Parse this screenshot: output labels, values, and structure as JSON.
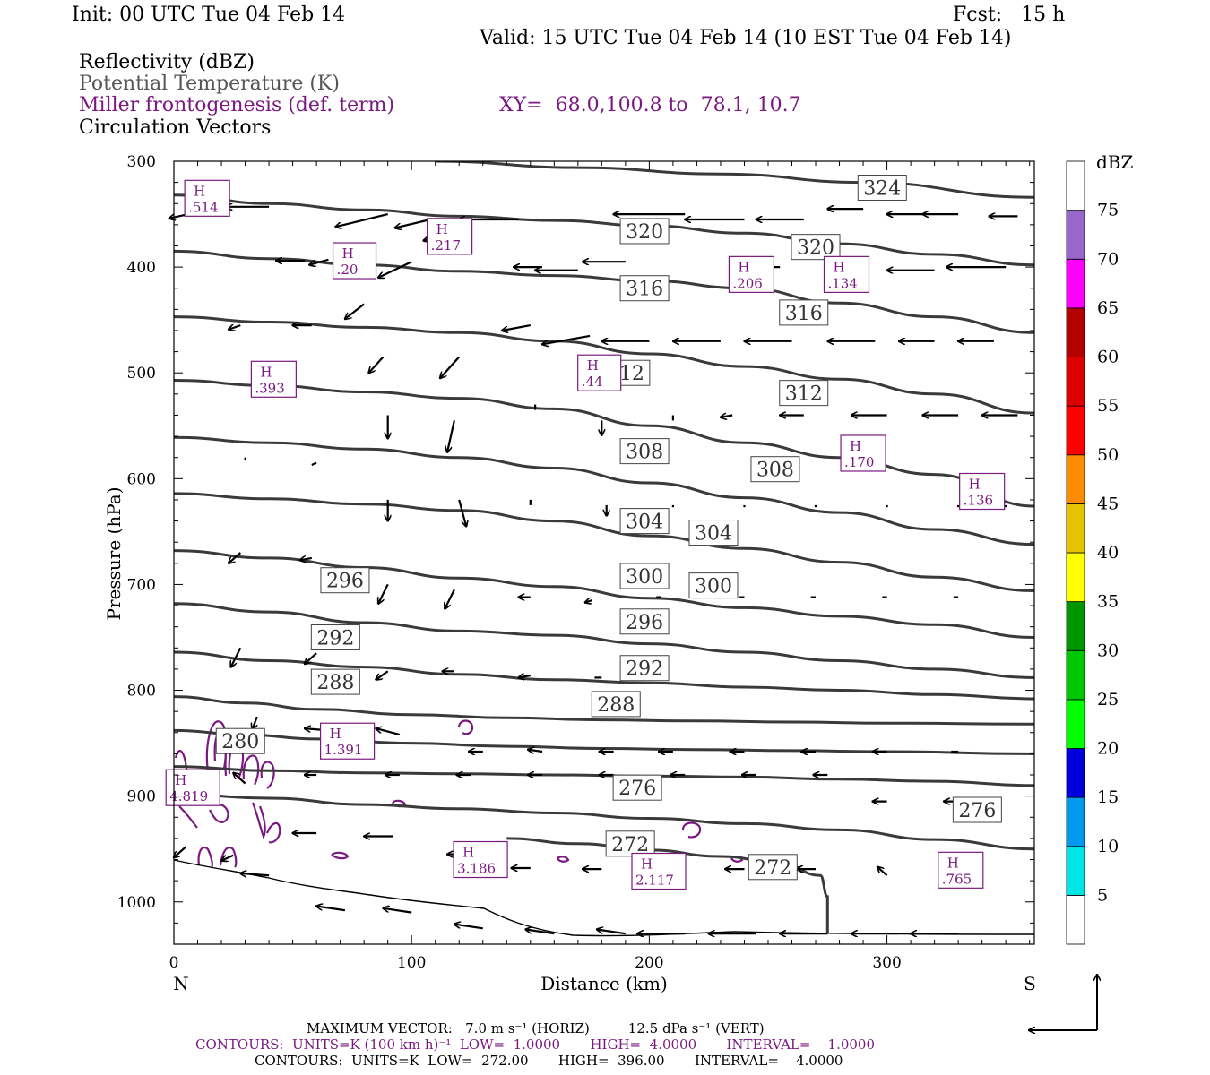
{
  "header": {
    "init": "Init: 00 UTC Tue 04 Feb 14",
    "fcst": "Fcst:   15 h",
    "valid": "Valid: 15 UTC Tue 04 Feb 14 (10 EST Tue 04 Feb 14)"
  },
  "legend_lines": {
    "reflectivity": "Reflectivity (dBZ)",
    "theta": "Potential Temperature (K)",
    "miller": "Miller frontogenesis (def. term)",
    "xy": "XY=  68.0,100.8 to  78.1, 10.7",
    "vectors": "Circulation Vectors"
  },
  "colors": {
    "theta_line": "#3a3a3a",
    "frontogenesis": "#7a1a80",
    "vector": "#000000"
  },
  "chart_data": {
    "type": "line",
    "xlabel": "Distance (km)",
    "ylabel": "Pressure (hPa)",
    "xlim": [
      0,
      362
    ],
    "ylim": [
      1040,
      300
    ],
    "x_ticks": [
      "0",
      "100",
      "200",
      "300"
    ],
    "y_ticks": [
      "300",
      "400",
      "500",
      "600",
      "700",
      "800",
      "900",
      "1000"
    ],
    "x_end_labels": {
      "left": "N",
      "right": "S"
    },
    "series": [
      {
        "theta": 324,
        "x": [
          110,
          170,
          230,
          290,
          362
        ],
        "p": [
          300,
          306,
          312,
          320,
          334
        ]
      },
      {
        "theta": 320,
        "x": [
          0,
          40,
          80,
          120,
          160,
          200,
          240,
          280,
          320,
          362
        ],
        "p": [
          332,
          340,
          346,
          352,
          356,
          361,
          368,
          378,
          388,
          398
        ]
      },
      {
        "theta": 316,
        "x": [
          0,
          40,
          80,
          120,
          160,
          200,
          240,
          280,
          320,
          362
        ],
        "p": [
          385,
          392,
          398,
          404,
          408,
          413,
          420,
          434,
          447,
          462
        ]
      },
      {
        "theta": 312,
        "x": [
          0,
          40,
          80,
          120,
          160,
          200,
          240,
          280,
          320,
          362
        ],
        "p": [
          447,
          452,
          457,
          462,
          470,
          482,
          494,
          506,
          520,
          538
        ]
      },
      {
        "theta": 308,
        "x": [
          0,
          40,
          80,
          120,
          160,
          200,
          240,
          280,
          320,
          362
        ],
        "p": [
          507,
          512,
          518,
          524,
          534,
          550,
          566,
          580,
          596,
          626
        ]
      },
      {
        "theta": 304,
        "x": [
          0,
          40,
          80,
          120,
          160,
          200,
          240,
          280,
          320,
          362
        ],
        "p": [
          561,
          566,
          572,
          580,
          590,
          604,
          618,
          632,
          648,
          662
        ]
      },
      {
        "theta": 300,
        "x": [
          0,
          40,
          80,
          120,
          160,
          200,
          240,
          280,
          320,
          362
        ],
        "p": [
          614,
          619,
          624,
          630,
          640,
          654,
          666,
          679,
          693,
          706
        ]
      },
      {
        "theta": 296,
        "x": [
          0,
          40,
          80,
          120,
          160,
          200,
          240,
          280,
          320,
          362
        ],
        "p": [
          668,
          675,
          684,
          694,
          702,
          713,
          722,
          730,
          738,
          750
        ]
      },
      {
        "theta": 292,
        "x": [
          0,
          40,
          80,
          120,
          160,
          200,
          240,
          280,
          320,
          362
        ],
        "p": [
          718,
          726,
          736,
          744,
          748,
          756,
          764,
          772,
          780,
          788
        ]
      },
      {
        "theta": 288,
        "x": [
          0,
          40,
          80,
          120,
          160,
          200,
          240,
          280,
          320,
          362
        ],
        "p": [
          764,
          772,
          778,
          785,
          790,
          793,
          797,
          800,
          804,
          808
        ]
      },
      {
        "theta": 284,
        "x": [
          0,
          30,
          60,
          100,
          140,
          180,
          220,
          260,
          300,
          362
        ],
        "p": [
          806,
          812,
          818,
          823,
          826,
          828,
          829,
          830,
          831,
          832
        ]
      },
      {
        "theta": 280,
        "x": [
          0,
          30,
          60,
          100,
          140,
          180,
          220,
          260,
          300,
          362
        ],
        "p": [
          838,
          842,
          846,
          850,
          853,
          855,
          856,
          857,
          858,
          860
        ]
      },
      {
        "theta": 276,
        "x": [
          0,
          40,
          80,
          120,
          160,
          200,
          240,
          280,
          320,
          362
        ],
        "p": [
          872,
          876,
          878,
          879,
          880,
          881,
          882,
          884,
          886,
          890
        ]
      },
      {
        "theta": 272,
        "x": [
          0,
          40,
          80,
          120,
          160,
          200,
          240,
          280,
          320,
          362
        ],
        "p": [
          898,
          902,
          908,
          912,
          916,
          921,
          926,
          932,
          941,
          950
        ]
      },
      {
        "theta": 272,
        "x": [
          140,
          170,
          200,
          230,
          255,
          272,
          275,
          275
        ],
        "p": [
          940,
          945,
          951,
          957,
          963,
          975,
          995,
          1030
        ]
      }
    ],
    "theta_labels": [
      {
        "text": "324",
        "x": 298,
        "p": 325
      },
      {
        "text": "320",
        "x": 198,
        "p": 366
      },
      {
        "text": "320",
        "x": 270,
        "p": 381
      },
      {
        "text": "316",
        "x": 198,
        "p": 420
      },
      {
        "text": "316",
        "x": 265,
        "p": 443
      },
      {
        "text": "312",
        "x": 190,
        "p": 500
      },
      {
        "text": "312",
        "x": 265,
        "p": 519
      },
      {
        "text": "308",
        "x": 198,
        "p": 574
      },
      {
        "text": "308",
        "x": 253,
        "p": 591
      },
      {
        "text": "304",
        "x": 198,
        "p": 640
      },
      {
        "text": "304",
        "x": 227,
        "p": 651
      },
      {
        "text": "300",
        "x": 198,
        "p": 692
      },
      {
        "text": "300",
        "x": 227,
        "p": 701
      },
      {
        "text": "296",
        "x": 72,
        "p": 696
      },
      {
        "text": "296",
        "x": 198,
        "p": 735
      },
      {
        "text": "292",
        "x": 68,
        "p": 750
      },
      {
        "text": "292",
        "x": 198,
        "p": 779
      },
      {
        "text": "288",
        "x": 68,
        "p": 792
      },
      {
        "text": "288",
        "x": 186,
        "p": 813
      },
      {
        "text": "280",
        "x": 28,
        "p": 848
      },
      {
        "text": "276",
        "x": 195,
        "p": 892
      },
      {
        "text": "276",
        "x": 338,
        "p": 913
      },
      {
        "text": "272",
        "x": 192,
        "p": 945
      },
      {
        "text": "272",
        "x": 252,
        "p": 967
      }
    ],
    "frontogenesis_highs": [
      {
        "label": "H",
        "value": ".514",
        "x": 14,
        "p": 335
      },
      {
        "label": "H",
        "value": ".217",
        "x": 116,
        "p": 371
      },
      {
        "label": "H",
        "value": ".20",
        "x": 76,
        "p": 394
      },
      {
        "label": "H",
        "value": ".206",
        "x": 243,
        "p": 407
      },
      {
        "label": "H",
        "value": ".134",
        "x": 283,
        "p": 407
      },
      {
        "label": "H",
        "value": ".393",
        "x": 42,
        "p": 506
      },
      {
        "label": "H",
        "value": ".44",
        "x": 179,
        "p": 500
      },
      {
        "label": "H",
        "value": ".170",
        "x": 290,
        "p": 576
      },
      {
        "label": "H",
        "value": ".136",
        "x": 340,
        "p": 612
      },
      {
        "label": "H",
        "value": "1.391",
        "x": 73,
        "p": 848
      },
      {
        "label": "H",
        "value": "4.819",
        "x": 8,
        "p": 892
      },
      {
        "label": "H",
        "value": "3.186",
        "x": 129,
        "p": 960
      },
      {
        "label": "H",
        "value": "2.117",
        "x": 204,
        "p": 971
      },
      {
        "label": "H",
        "value": ".765",
        "x": 331,
        "p": 970
      }
    ],
    "vectors": [
      [
        8,
        349,
        -10,
        5
      ],
      [
        40,
        343,
        -18,
        0
      ],
      [
        65,
        393,
        -8,
        5
      ],
      [
        55,
        394,
        -12,
        0
      ],
      [
        90,
        350,
        -22,
        12
      ],
      [
        108,
        355,
        -15,
        8
      ],
      [
        100,
        395,
        -14,
        15
      ],
      [
        80,
        435,
        -8,
        14
      ],
      [
        125,
        363,
        -20,
        12
      ],
      [
        145,
        355,
        -25,
        0
      ],
      [
        155,
        400,
        -12,
        0
      ],
      [
        170,
        403,
        -18,
        0
      ],
      [
        190,
        395,
        -18,
        0
      ],
      [
        215,
        350,
        -30,
        0
      ],
      [
        240,
        355,
        -25,
        0
      ],
      [
        265,
        355,
        -20,
        0
      ],
      [
        290,
        345,
        -15,
        0
      ],
      [
        315,
        350,
        -15,
        0
      ],
      [
        330,
        350,
        -15,
        0
      ],
      [
        355,
        352,
        -12,
        0
      ],
      [
        255,
        400,
        -15,
        0
      ],
      [
        290,
        400,
        -15,
        0
      ],
      [
        320,
        403,
        -20,
        0
      ],
      [
        350,
        400,
        -25,
        0
      ],
      [
        28,
        455,
        -5,
        4
      ],
      [
        58,
        455,
        -8,
        0
      ],
      [
        88,
        485,
        -6,
        15
      ],
      [
        120,
        485,
        -8,
        20
      ],
      [
        150,
        455,
        -12,
        5
      ],
      [
        175,
        465,
        -20,
        8
      ],
      [
        200,
        470,
        -20,
        0
      ],
      [
        230,
        470,
        -20,
        0
      ],
      [
        260,
        470,
        -20,
        0
      ],
      [
        295,
        470,
        -20,
        0
      ],
      [
        320,
        470,
        -15,
        0
      ],
      [
        345,
        470,
        -15,
        0
      ],
      [
        90,
        540,
        0,
        22
      ],
      [
        118,
        545,
        -3,
        30
      ],
      [
        152,
        530,
        0,
        5
      ],
      [
        180,
        545,
        0,
        14
      ],
      [
        210,
        540,
        0,
        5
      ],
      [
        235,
        540,
        -5,
        2
      ],
      [
        265,
        540,
        -10,
        0
      ],
      [
        300,
        540,
        -15,
        0
      ],
      [
        330,
        540,
        -15,
        0
      ],
      [
        355,
        540,
        -15,
        0
      ],
      [
        30,
        580,
        0,
        2
      ],
      [
        60,
        585,
        -2,
        2
      ],
      [
        90,
        620,
        0,
        20
      ],
      [
        120,
        620,
        3,
        25
      ],
      [
        150,
        620,
        0,
        5
      ],
      [
        182,
        625,
        0,
        10
      ],
      [
        210,
        625,
        0,
        2
      ],
      [
        240,
        625,
        0,
        2
      ],
      [
        270,
        625,
        0,
        2
      ],
      [
        300,
        625,
        0,
        2
      ],
      [
        330,
        625,
        0,
        2
      ],
      [
        350,
        625,
        0,
        2
      ],
      [
        28,
        670,
        -5,
        10
      ],
      [
        58,
        675,
        -5,
        2
      ],
      [
        90,
        700,
        -4,
        18
      ],
      [
        118,
        705,
        -4,
        18
      ],
      [
        150,
        712,
        -5,
        0
      ],
      [
        176,
        715,
        -3,
        2
      ],
      [
        205,
        712,
        -2,
        0
      ],
      [
        240,
        712,
        -2,
        0
      ],
      [
        270,
        712,
        -2,
        0
      ],
      [
        300,
        712,
        -2,
        0
      ],
      [
        330,
        712,
        -2,
        0
      ],
      [
        28,
        760,
        -4,
        18
      ],
      [
        60,
        765,
        -5,
        10
      ],
      [
        90,
        782,
        -5,
        8
      ],
      [
        118,
        782,
        -5,
        0
      ],
      [
        150,
        786,
        -5,
        2
      ],
      [
        180,
        788,
        -3,
        0
      ],
      [
        210,
        790,
        0,
        0
      ],
      [
        240,
        790,
        0,
        0
      ],
      [
        270,
        790,
        0,
        0
      ],
      [
        300,
        790,
        0,
        0
      ],
      [
        330,
        790,
        0,
        0
      ],
      [
        35,
        825,
        -2,
        12
      ],
      [
        65,
        838,
        -10,
        -2
      ],
      [
        95,
        842,
        -10,
        -6
      ],
      [
        130,
        858,
        -6,
        0
      ],
      [
        155,
        858,
        -6,
        -2
      ],
      [
        185,
        858,
        -6,
        0
      ],
      [
        210,
        858,
        -6,
        0
      ],
      [
        240,
        858,
        -6,
        0
      ],
      [
        270,
        858,
        -6,
        0
      ],
      [
        300,
        858,
        -6,
        0
      ],
      [
        330,
        858,
        -3,
        0
      ],
      [
        5,
        882,
        -3,
        12
      ],
      [
        30,
        888,
        -5,
        -10
      ],
      [
        60,
        880,
        -5,
        0
      ],
      [
        95,
        880,
        -6,
        0
      ],
      [
        125,
        880,
        -6,
        0
      ],
      [
        155,
        880,
        -6,
        0
      ],
      [
        185,
        880,
        -6,
        0
      ],
      [
        215,
        880,
        -6,
        0
      ],
      [
        245,
        880,
        -6,
        0
      ],
      [
        275,
        880,
        -6,
        0
      ],
      [
        300,
        905,
        -6,
        0
      ],
      [
        330,
        905,
        -6,
        0
      ],
      [
        5,
        948,
        -5,
        10
      ],
      [
        25,
        956,
        -5,
        5
      ],
      [
        60,
        935,
        -10,
        0
      ],
      [
        92,
        938,
        -12,
        0
      ],
      [
        125,
        955,
        -10,
        0
      ],
      [
        150,
        968,
        -8,
        0
      ],
      [
        180,
        969,
        -8,
        0
      ],
      [
        210,
        969,
        -8,
        0
      ],
      [
        240,
        969,
        -8,
        0
      ],
      [
        270,
        969,
        -8,
        0
      ],
      [
        300,
        975,
        -4,
        -8
      ],
      [
        330,
        975,
        -8,
        0
      ],
      [
        40,
        975,
        -12,
        -2
      ],
      [
        72,
        1008,
        -12,
        -4
      ],
      [
        100,
        1010,
        -12,
        -4
      ],
      [
        130,
        1025,
        -12,
        -4
      ],
      [
        160,
        1030,
        -12,
        -4
      ],
      [
        190,
        1030,
        -12,
        -4
      ],
      [
        215,
        1030,
        -20,
        0
      ],
      [
        245,
        1030,
        -20,
        0
      ],
      [
        275,
        1030,
        -20,
        0
      ],
      [
        305,
        1030,
        -20,
        0
      ],
      [
        330,
        1030,
        -20,
        0
      ]
    ],
    "colorbar": {
      "title": "dBZ",
      "levels": [
        "5",
        "10",
        "15",
        "20",
        "25",
        "30",
        "35",
        "40",
        "45",
        "50",
        "55",
        "60",
        "65",
        "70",
        "75"
      ],
      "colors": [
        "#ffffff",
        "#00e5e5",
        "#0099ee",
        "#0000dd",
        "#00ff00",
        "#00c800",
        "#009600",
        "#ffff00",
        "#e6c200",
        "#ff8c00",
        "#ff0000",
        "#dd0000",
        "#b40000",
        "#ff00ff",
        "#9966cc",
        "#ffffff"
      ]
    }
  },
  "footer": {
    "line1": "MAXIMUM VECTOR:   7.0 m s⁻¹ (HORIZ)         12.5 dPa s⁻¹ (VERT)",
    "line2": "CONTOURS:  UNITS=K (100 km h)⁻¹  LOW=  1.0000       HIGH=  4.0000       INTERVAL=    1.0000",
    "line3": "CONTOURS:  UNITS=K  LOW=  272.00       HIGH=  396.00       INTERVAL=    4.0000"
  }
}
